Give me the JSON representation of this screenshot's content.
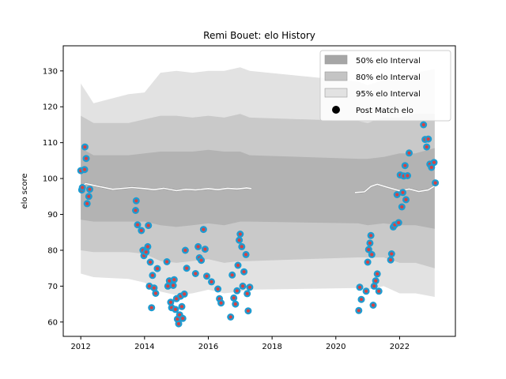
{
  "chart_data": {
    "type": "scatter",
    "title": "Remi Bouet: elo History",
    "xlabel": "",
    "ylabel": "elo score",
    "xlim": [
      2011.45,
      2023.75
    ],
    "ylim": [
      56,
      137
    ],
    "x_ticks": [
      2012,
      2014,
      2016,
      2018,
      2020,
      2022
    ],
    "y_ticks": [
      60,
      70,
      80,
      90,
      100,
      110,
      120,
      130
    ],
    "grid": false,
    "legend_position": "top-right",
    "legend": [
      {
        "label": "50% elo Interval",
        "kind": "band",
        "color": "#a6a6a6"
      },
      {
        "label": "80% elo Interval",
        "kind": "band",
        "color": "#c4c4c4"
      },
      {
        "label": "95% elo Interval",
        "kind": "band",
        "color": "#e2e2e2"
      },
      {
        "label": "Post Match elo",
        "kind": "marker",
        "color": "#000000"
      }
    ],
    "colors": {
      "band_95": "#e2e2e2",
      "band_80": "#c9c9c9",
      "band_50": "#b3b3b3",
      "mean_line": "#ffffff",
      "mean_line_dark": "#808080",
      "marker_fill": "#1f9bd0",
      "marker_center": "#d94040"
    },
    "bands": {
      "x": [
        2012.0,
        2012.4,
        2013.5,
        2014.0,
        2014.5,
        2015.0,
        2015.5,
        2016.0,
        2016.5,
        2017.0,
        2017.3,
        2020.7,
        2021.0,
        2021.5,
        2022.0,
        2022.5,
        2023.1
      ],
      "p95_hi": [
        126.5,
        121.0,
        123.5,
        124.0,
        129.5,
        130.0,
        129.5,
        130.0,
        130.0,
        131.0,
        130.0,
        127.0,
        126.0,
        127.5,
        128.0,
        129.5,
        130.5
      ],
      "p80_hi": [
        117.5,
        115.5,
        115.5,
        116.5,
        117.5,
        117.5,
        117.0,
        117.5,
        117.0,
        118.0,
        117.0,
        116.0,
        115.5,
        117.0,
        117.0,
        118.0,
        118.0
      ],
      "p50_hi": [
        108.5,
        106.5,
        106.5,
        107.0,
        107.5,
        107.5,
        107.5,
        108.0,
        107.5,
        107.5,
        106.5,
        105.5,
        105.5,
        106.0,
        107.0,
        107.0,
        108.5
      ],
      "p50_lo": [
        88.5,
        88.0,
        88.0,
        88.0,
        87.0,
        86.5,
        87.0,
        87.5,
        87.0,
        88.0,
        88.0,
        87.5,
        87.0,
        87.5,
        87.0,
        87.0,
        86.0
      ],
      "p80_lo": [
        80.0,
        79.5,
        79.5,
        79.0,
        77.0,
        76.5,
        77.0,
        77.5,
        76.5,
        77.0,
        77.0,
        78.0,
        78.0,
        78.0,
        76.5,
        76.5,
        75.0
      ],
      "p95_lo": [
        73.5,
        72.5,
        72.0,
        71.0,
        68.5,
        67.5,
        68.0,
        69.0,
        68.0,
        68.5,
        69.0,
        69.5,
        69.0,
        70.0,
        68.0,
        68.0,
        67.0
      ]
    },
    "mean_line": {
      "x": [
        2012.0,
        2012.15,
        2012.3,
        2012.6,
        2013.0,
        2013.6,
        2014.0,
        2014.3,
        2014.6,
        2015.0,
        2015.3,
        2015.6,
        2016.0,
        2016.3,
        2016.6,
        2016.9,
        2017.2,
        2017.35,
        2020.6,
        2020.9,
        2021.1,
        2021.3,
        2021.6,
        2022.0,
        2022.3,
        2022.6,
        2022.9,
        2023.1
      ],
      "y": [
        97.2,
        98.6,
        98.3,
        97.7,
        97.0,
        97.5,
        97.2,
        96.9,
        97.3,
        96.6,
        97.0,
        96.8,
        97.2,
        96.9,
        97.3,
        97.1,
        97.4,
        97.2,
        96.1,
        96.3,
        97.8,
        98.4,
        97.6,
        96.6,
        97.1,
        96.4,
        96.8,
        97.9
      ]
    },
    "points": {
      "x": [
        2012.0,
        2012.03,
        2012.05,
        2012.12,
        2012.13,
        2012.17,
        2012.2,
        2012.25,
        2012.28,
        2013.72,
        2013.74,
        2013.78,
        2013.9,
        2013.95,
        2013.98,
        2014.05,
        2014.1,
        2014.12,
        2014.15,
        2014.18,
        2014.22,
        2014.25,
        2014.3,
        2014.35,
        2014.4,
        2014.7,
        2014.73,
        2014.78,
        2014.82,
        2014.85,
        2014.9,
        2014.93,
        2014.97,
        2015.0,
        2015.03,
        2015.07,
        2015.1,
        2015.13,
        2015.17,
        2015.2,
        2015.25,
        2015.28,
        2015.32,
        2015.6,
        2015.68,
        2015.72,
        2015.78,
        2015.85,
        2015.9,
        2015.95,
        2016.1,
        2016.3,
        2016.35,
        2016.4,
        2016.7,
        2016.75,
        2016.8,
        2016.85,
        2016.9,
        2016.93,
        2016.97,
        2017.0,
        2017.05,
        2017.08,
        2017.12,
        2017.18,
        2017.22,
        2017.25,
        2017.3,
        2020.72,
        2020.75,
        2020.8,
        2020.95,
        2021.0,
        2021.03,
        2021.07,
        2021.1,
        2021.13,
        2021.17,
        2021.2,
        2021.25,
        2021.3,
        2021.35,
        2021.72,
        2021.75,
        2021.8,
        2021.85,
        2021.92,
        2021.97,
        2022.02,
        2022.07,
        2022.1,
        2022.13,
        2022.17,
        2022.2,
        2022.25,
        2022.3,
        2022.75,
        2022.8,
        2022.85,
        2022.9,
        2022.95,
        2023.0,
        2023.08,
        2023.12
      ],
      "y": [
        102.2,
        96.8,
        97.5,
        102.5,
        108.8,
        105.6,
        93.0,
        95.0,
        97.0,
        91.1,
        93.8,
        87.1,
        85.5,
        80.0,
        78.5,
        79.5,
        81.0,
        86.9,
        70.0,
        76.7,
        64.0,
        73.0,
        69.5,
        68.0,
        74.9,
        76.8,
        70.0,
        71.5,
        65.5,
        64.0,
        70.2,
        71.8,
        63.5,
        66.5,
        60.8,
        59.5,
        62.0,
        67.2,
        64.3,
        61.0,
        67.8,
        80.0,
        75.0,
        73.5,
        81.0,
        77.9,
        77.2,
        85.8,
        80.3,
        72.8,
        71.2,
        69.2,
        66.5,
        65.3,
        61.4,
        73.1,
        66.7,
        65.0,
        68.7,
        75.8,
        82.8,
        84.5,
        81.0,
        70.0,
        74.0,
        78.8,
        67.9,
        63.1,
        69.7,
        63.2,
        69.7,
        66.3,
        68.6,
        76.7,
        80.2,
        82.0,
        84.1,
        78.8,
        64.7,
        70.0,
        71.5,
        73.4,
        68.6,
        77.3,
        79.0,
        86.5,
        87.1,
        95.5,
        87.7,
        101.0,
        92.1,
        96.1,
        100.7,
        103.6,
        94.1,
        100.8,
        107.1,
        115.0,
        110.9,
        108.8,
        111.0,
        104.0,
        103.1,
        104.5,
        98.8
      ]
    }
  }
}
